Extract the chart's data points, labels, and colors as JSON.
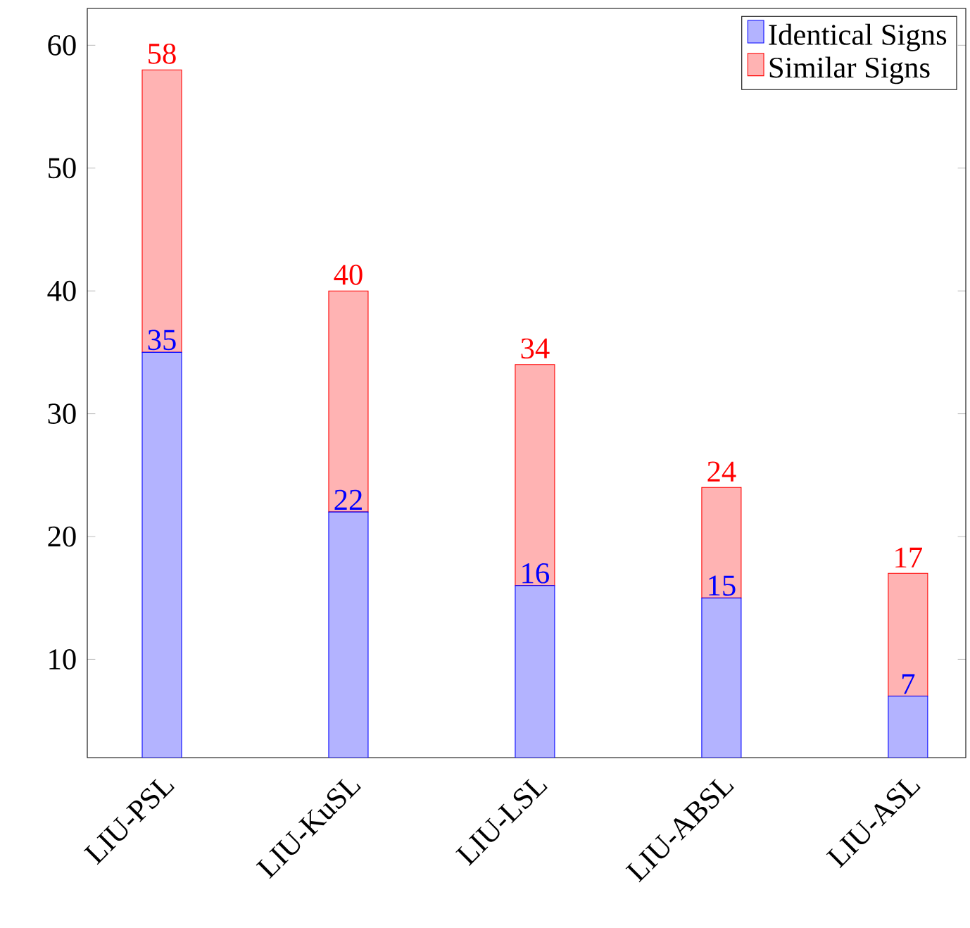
{
  "chart_data": {
    "type": "bar",
    "stacked": true,
    "categories": [
      "LIU-PSL",
      "LIU-KuSL",
      "LIU-LSL",
      "LIU-ABSL",
      "LIU-ASL"
    ],
    "series": [
      {
        "name": "Identical Signs",
        "color": "#b3b3ff",
        "values": [
          35,
          22,
          16,
          15,
          7
        ],
        "value_labels": [
          "35",
          "22",
          "16",
          "15",
          "7"
        ]
      },
      {
        "name": "Similar Signs",
        "color": "#ffb3b3",
        "values": [
          23,
          18,
          18,
          9,
          10
        ]
      }
    ],
    "totals": [
      "58",
      "40",
      "34",
      "24",
      "17"
    ],
    "ylim": [
      2,
      63
    ],
    "yticks": [
      10,
      20,
      30,
      40,
      50,
      60
    ],
    "legend": "top right"
  }
}
